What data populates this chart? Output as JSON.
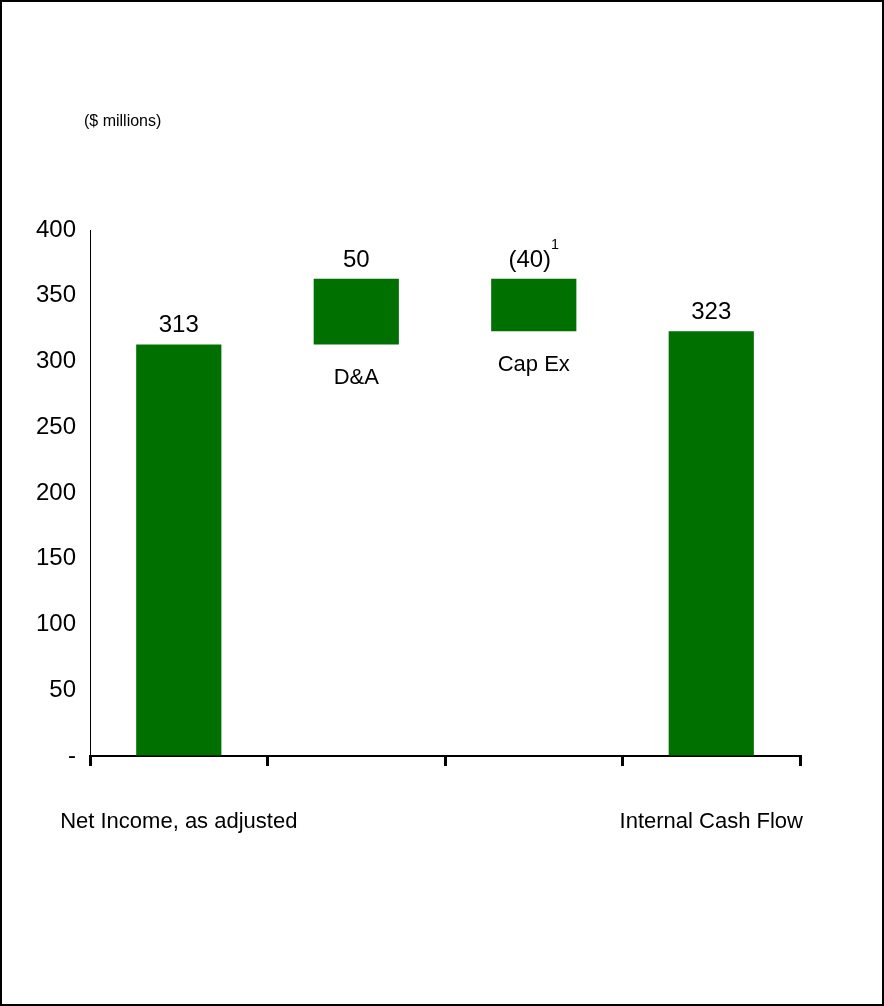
{
  "chart_data": {
    "type": "bar",
    "annotations": [
      "($ millions)"
    ],
    "categories": [
      "Net Income, as adjusted",
      "D&A",
      "Cap Ex",
      "Internal Cash Flow"
    ],
    "values": [
      313,
      50,
      -40,
      323
    ],
    "base": [
      0,
      313,
      363,
      0
    ],
    "value_labels": [
      "313",
      "50",
      "(40)$^{1}$",
      "323"
    ],
    "color": "#007000",
    "ylim": [
      0,
      400
    ],
    "yticks": [
      {
        "value": 0,
        "label": "-"
      },
      50,
      100,
      150,
      200,
      250,
      300,
      350,
      400
    ],
    "grid": false,
    "legend": false
  }
}
